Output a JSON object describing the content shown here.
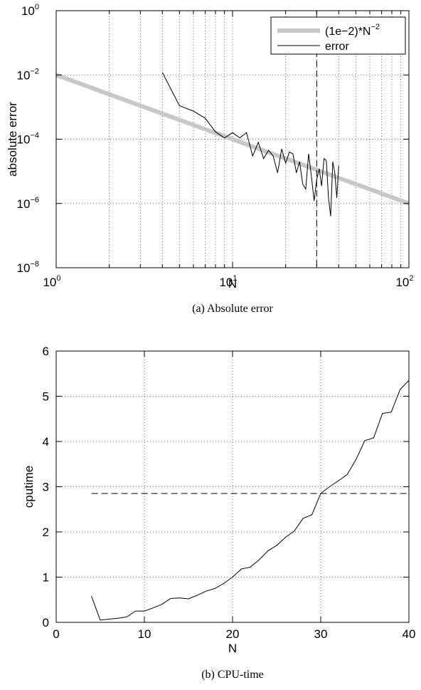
{
  "chart_data": [
    {
      "type": "line",
      "xscale": "log",
      "yscale": "log",
      "xlim": [
        1,
        100
      ],
      "ylim": [
        1e-08,
        1
      ],
      "xlabel": "N",
      "ylabel": "absolute error",
      "grid": true,
      "legend_position": "top-right",
      "caption": "(a)  Absolute error",
      "x_ticks": [
        {
          "base": "10",
          "exp": "0",
          "value": 1
        },
        {
          "base": "10",
          "exp": "1",
          "value": 10
        },
        {
          "base": "10",
          "exp": "2",
          "value": 100
        }
      ],
      "y_ticks": [
        {
          "base": "10",
          "exp": "0",
          "value": 1
        },
        {
          "base": "10",
          "exp": "−2",
          "value": 0.01
        },
        {
          "base": "10",
          "exp": "−4",
          "value": 0.0001
        },
        {
          "base": "10",
          "exp": "−6",
          "value": 1e-06
        },
        {
          "base": "10",
          "exp": "−8",
          "value": 1e-08
        }
      ],
      "vertical_reference": {
        "x": 30,
        "style": "dashed",
        "color": "#000000"
      },
      "series": [
        {
          "name": "(1e−2)*N",
          "name_sup": "−2",
          "style": "thick",
          "color": "#c8c8c8",
          "x": [
            1,
            100
          ],
          "y": [
            0.01,
            1e-06
          ]
        },
        {
          "name": "error",
          "style": "thin",
          "color": "#000000",
          "x": [
            4,
            5,
            6,
            7,
            8,
            9,
            10,
            11,
            12,
            13,
            14,
            15,
            16,
            17,
            18,
            19,
            20,
            21,
            22,
            23,
            24,
            25,
            26,
            27,
            28,
            29,
            30,
            31,
            32,
            33,
            34,
            35,
            36,
            37,
            38,
            39,
            40
          ],
          "y": [
            0.012,
            0.0011,
            0.00075,
            0.00045,
            0.00017,
            0.00011,
            0.00016,
            0.00011,
            0.00016,
            3e-05,
            8e-05,
            2.5e-05,
            4.5e-05,
            3e-05,
            9e-06,
            5e-05,
            1.8e-05,
            4e-05,
            3.5e-05,
            9e-06,
            2e-05,
            4e-06,
            2.8e-06,
            3.5e-05,
            7e-06,
            1.2e-06,
            5.5e-06,
            1.2e-05,
            3.5e-06,
            2.5e-05,
            2.2e-05,
            1.5e-06,
            4e-07,
            2e-05,
            9e-06,
            1.5e-06,
            1.5e-05
          ]
        }
      ]
    },
    {
      "type": "line",
      "xlim": [
        0,
        40
      ],
      "ylim": [
        0,
        6
      ],
      "xlabel": "N",
      "ylabel": "cputime",
      "grid": true,
      "caption": "(b)  CPU-time",
      "x_ticks": [
        "0",
        "10",
        "20",
        "30",
        "40"
      ],
      "y_ticks": [
        "0",
        "1",
        "2",
        "3",
        "4",
        "5",
        "6"
      ],
      "horizontal_reference": {
        "y": 2.85,
        "x_range": [
          4,
          40
        ],
        "style": "dashed",
        "color": "#000000"
      },
      "series": [
        {
          "color": "#000000",
          "x": [
            4,
            5,
            6,
            7,
            8,
            9,
            10,
            11,
            12,
            13,
            14,
            15,
            16,
            17,
            18,
            19,
            20,
            21,
            22,
            23,
            24,
            25,
            26,
            27,
            28,
            29,
            30,
            31,
            32,
            33,
            34,
            35,
            36,
            37,
            38,
            39,
            40
          ],
          "y": [
            0.58,
            0.05,
            0.07,
            0.09,
            0.12,
            0.25,
            0.25,
            0.32,
            0.4,
            0.53,
            0.54,
            0.52,
            0.6,
            0.69,
            0.75,
            0.86,
            1.0,
            1.18,
            1.22,
            1.38,
            1.58,
            1.7,
            1.88,
            2.02,
            2.3,
            2.38,
            2.85,
            3.0,
            3.13,
            3.27,
            3.6,
            4.02,
            4.08,
            4.62,
            4.65,
            5.15,
            5.35
          ]
        }
      ]
    }
  ]
}
